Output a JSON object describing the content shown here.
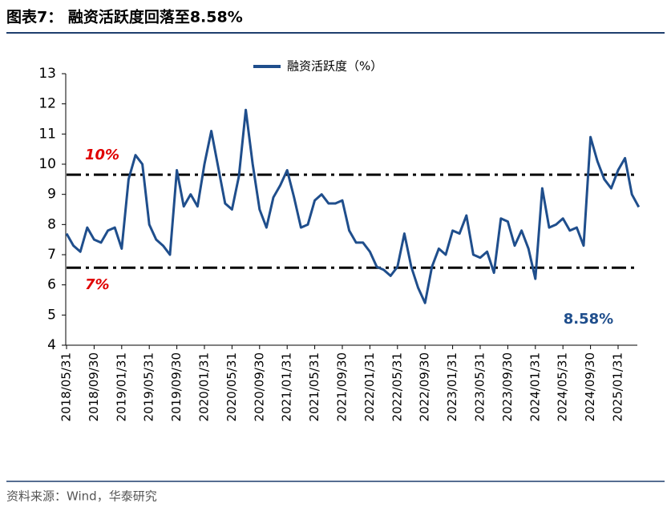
{
  "chart_data": {
    "type": "line",
    "title": "图表7： 融资活跃度回落至8.58%",
    "source": "资料来源：Wind，华泰研究",
    "categories": [
      "2018/05/31",
      null,
      null,
      null,
      "2018/09/30",
      null,
      null,
      null,
      "2019/01/31",
      null,
      null,
      null,
      "2019/05/31",
      null,
      null,
      null,
      "2019/09/30",
      null,
      null,
      null,
      "2020/01/31",
      null,
      null,
      null,
      "2020/05/31",
      null,
      null,
      null,
      "2020/09/30",
      null,
      null,
      null,
      "2021/01/31",
      null,
      null,
      null,
      "2021/05/31",
      null,
      null,
      null,
      "2021/09/30",
      null,
      null,
      null,
      "2022/01/31",
      null,
      null,
      null,
      "2022/05/31",
      null,
      null,
      null,
      "2022/09/30",
      null,
      null,
      null,
      "2023/01/31",
      null,
      null,
      null,
      "2023/05/31",
      null,
      null,
      null,
      "2023/09/30",
      null,
      null,
      null,
      "2024/01/31",
      null,
      null,
      null,
      "2024/05/31",
      null,
      null,
      null,
      "2024/09/30",
      null,
      null,
      null,
      "2025/01/31",
      null,
      null,
      null
    ],
    "series": [
      {
        "name": "融资活跃度（%）",
        "color": "#1f4e8c",
        "values": [
          7.7,
          7.3,
          7.1,
          7.9,
          7.5,
          7.4,
          7.8,
          7.9,
          7.2,
          9.5,
          10.3,
          10.0,
          8.0,
          7.5,
          7.3,
          7.0,
          9.8,
          8.6,
          9.0,
          8.6,
          10.0,
          11.1,
          9.9,
          8.7,
          8.5,
          9.6,
          11.8,
          10.0,
          8.5,
          7.9,
          8.9,
          9.3,
          9.8,
          8.9,
          7.9,
          8.0,
          8.8,
          9.0,
          8.7,
          8.7,
          8.8,
          7.8,
          7.4,
          7.4,
          7.1,
          6.6,
          6.5,
          6.3,
          6.6,
          7.7,
          6.6,
          5.9,
          5.4,
          6.6,
          7.2,
          7.0,
          7.8,
          7.7,
          8.3,
          7.0,
          6.9,
          7.1,
          6.4,
          8.2,
          8.1,
          7.3,
          7.8,
          7.2,
          6.2,
          9.2,
          7.9,
          8.0,
          8.2,
          7.8,
          7.9,
          7.3,
          10.9,
          10.1,
          9.5,
          9.2,
          9.8,
          10.2,
          9.0,
          8.58
        ]
      }
    ],
    "reference_lines": [
      {
        "label": "10%",
        "value": 9.65
      },
      {
        "label": "7%",
        "value": 6.57
      }
    ],
    "last_value_label": "8.58%",
    "ylim": [
      4,
      13
    ],
    "yticks": [
      4,
      5,
      6,
      7,
      8,
      9,
      10,
      11,
      12,
      13
    ]
  }
}
